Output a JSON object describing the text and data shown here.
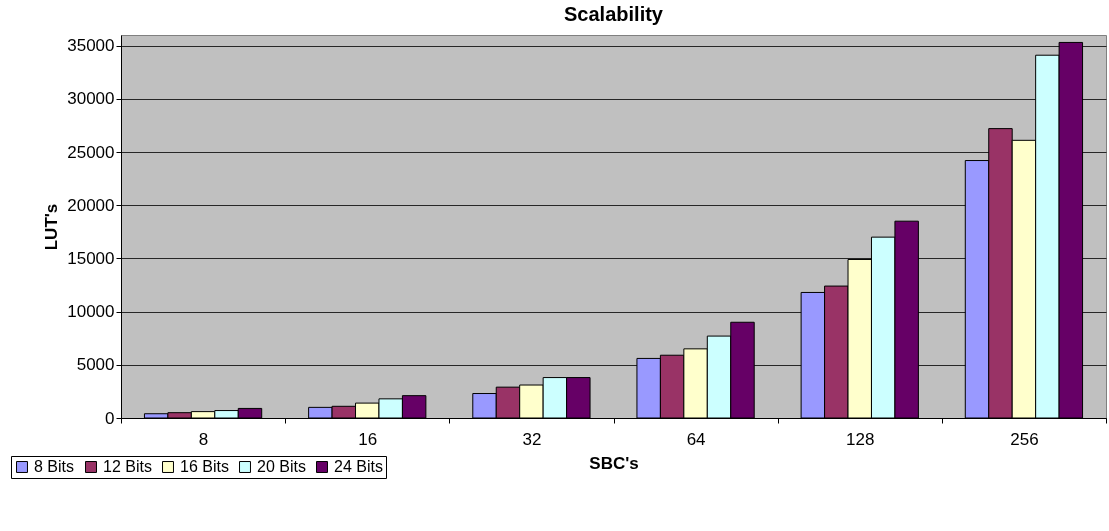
{
  "chart_data": {
    "type": "bar",
    "title": "Scalability",
    "xlabel": "SBC's",
    "ylabel": "LUT's",
    "categories": [
      "8",
      "16",
      "32",
      "64",
      "128",
      "256"
    ],
    "series": [
      {
        "name": "8 Bits",
        "color": "#9999ff",
        "values": [
          400,
          1000,
          2300,
          5600,
          11800,
          24200
        ]
      },
      {
        "name": "12 Bits",
        "color": "#993366",
        "values": [
          500,
          1100,
          2900,
          5900,
          12400,
          27200
        ]
      },
      {
        "name": "16 Bits",
        "color": "#ffffcc",
        "values": [
          600,
          1400,
          3100,
          6500,
          14900,
          26100
        ]
      },
      {
        "name": "20 Bits",
        "color": "#ccffff",
        "values": [
          700,
          1800,
          3800,
          7700,
          17000,
          34100
        ]
      },
      {
        "name": "24 Bits",
        "color": "#660066",
        "values": [
          900,
          2100,
          3800,
          9000,
          18500,
          35300
        ]
      }
    ],
    "ylim": [
      0,
      36000
    ],
    "yticks": [
      0,
      5000,
      10000,
      15000,
      20000,
      25000,
      30000,
      35000
    ],
    "grid": "y",
    "legend": "bottom left"
  }
}
